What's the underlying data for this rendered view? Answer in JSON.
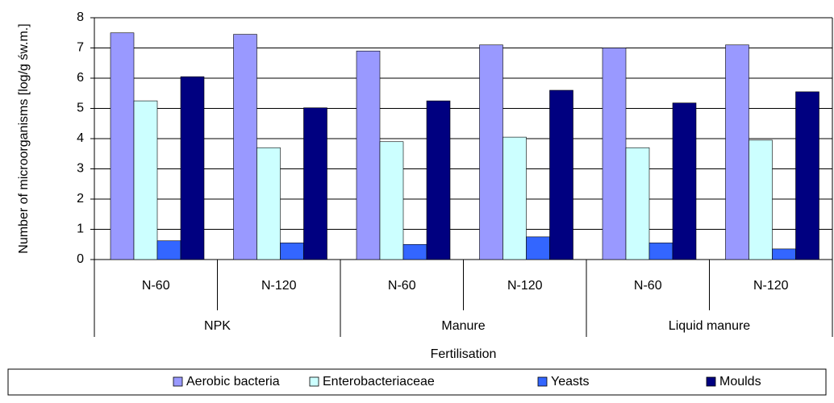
{
  "chart_data": {
    "type": "bar",
    "x_label": "Fertilisation",
    "y_label": "Number of microorganisms [log/g św.m.]",
    "categories": [
      "N-60",
      "N-120",
      "N-60",
      "N-120",
      "N-60",
      "N-120"
    ],
    "groups": [
      "NPK",
      "Manure",
      "Liquid manure"
    ],
    "series": [
      {
        "name": "Aerobic bacteria",
        "color": "#9999ff",
        "values": [
          7.5,
          7.45,
          6.9,
          7.1,
          7.0,
          7.1
        ]
      },
      {
        "name": "Enterobacteriaceae",
        "color": "#ccffff",
        "values": [
          5.25,
          3.7,
          3.9,
          4.05,
          3.7,
          3.95
        ]
      },
      {
        "name": "Yeasts",
        "color": "#3366ff",
        "values": [
          0.62,
          0.55,
          0.5,
          0.75,
          0.55,
          0.35
        ]
      },
      {
        "name": "Moulds",
        "color": "#000080",
        "values": [
          6.05,
          5.02,
          5.25,
          5.6,
          5.18,
          5.55
        ]
      }
    ],
    "ylim": [
      0,
      8
    ],
    "yticks": [
      0,
      1,
      2,
      3,
      4,
      5,
      6,
      7,
      8
    ],
    "grid": true,
    "legend": "bottom"
  }
}
